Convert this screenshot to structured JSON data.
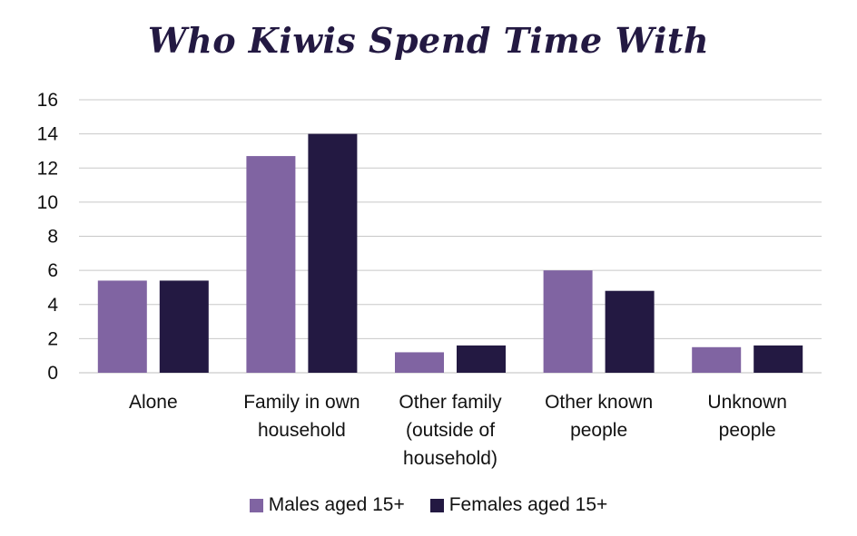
{
  "chart_data": {
    "type": "bar",
    "title": "Who Kiwis Spend Time With",
    "xlabel": "",
    "ylabel": "",
    "ylim": [
      0,
      16
    ],
    "yticks": [
      0,
      2,
      4,
      6,
      8,
      10,
      12,
      14,
      16
    ],
    "grid": true,
    "legend_position": "bottom",
    "categories": [
      [
        "Alone"
      ],
      [
        "Family in own",
        "household"
      ],
      [
        "Other family",
        "(outside of",
        "household)"
      ],
      [
        "Other known",
        "people"
      ],
      [
        "Unknown",
        "people"
      ]
    ],
    "series": [
      {
        "name": "Males aged 15+",
        "color": "#8064a2",
        "values": [
          5.4,
          12.7,
          1.2,
          6.0,
          1.5
        ]
      },
      {
        "name": "Females aged 15+",
        "color": "#231942",
        "values": [
          5.4,
          14.0,
          1.6,
          4.8,
          1.6
        ]
      }
    ]
  }
}
